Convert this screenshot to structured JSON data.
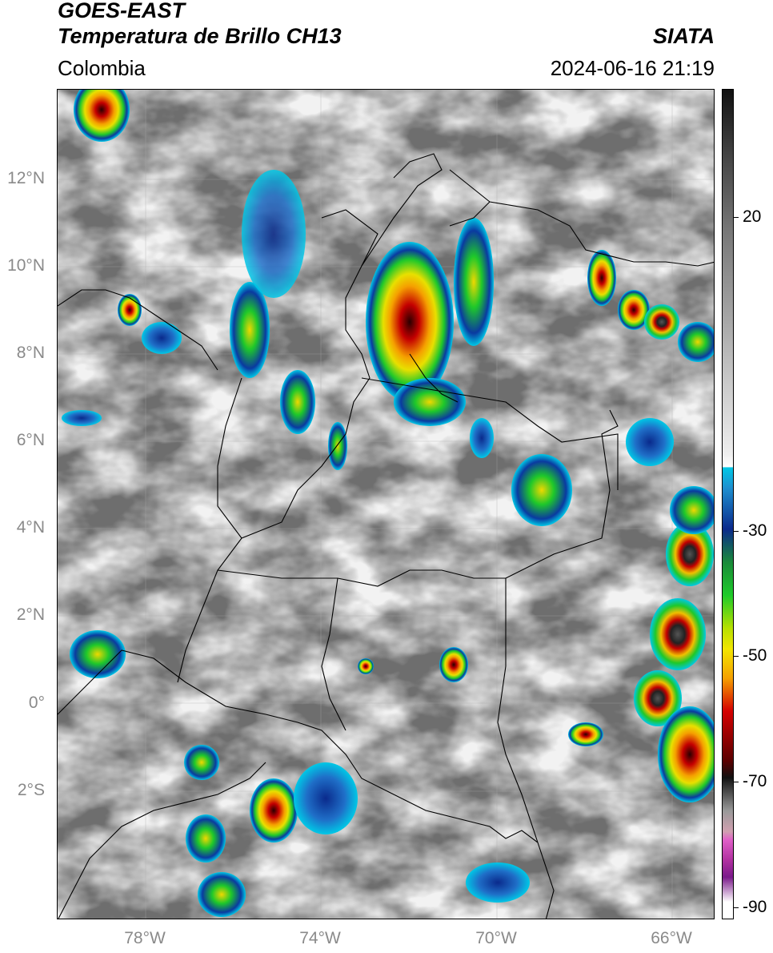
{
  "header": {
    "satellite": "GOES-EAST",
    "product": "Temperatura de Brillo CH13",
    "region": "Colombia",
    "organization": "SIATA",
    "datetime": "2024-06-16 21:19"
  },
  "axes": {
    "latitude_labels": [
      "12°N",
      "10°N",
      "8°N",
      "6°N",
      "4°N",
      "2°N",
      "0°",
      "2°S"
    ],
    "longitude_labels": [
      "78°W",
      "74°W",
      "70°W",
      "66°W"
    ]
  },
  "colorbar": {
    "tick_labels": [
      "20",
      "-30",
      "-50",
      "-70",
      "-90"
    ],
    "colors": {
      "warm_gray_top": "#111111",
      "cyan": "#00c8e6",
      "blue": "#0b2a8c",
      "green": "#1ecb2a",
      "yellow": "#f2e600",
      "red": "#d40000",
      "dark_red": "#3a0000",
      "magenta": "#e060c8",
      "purple": "#7a1a8a"
    }
  }
}
